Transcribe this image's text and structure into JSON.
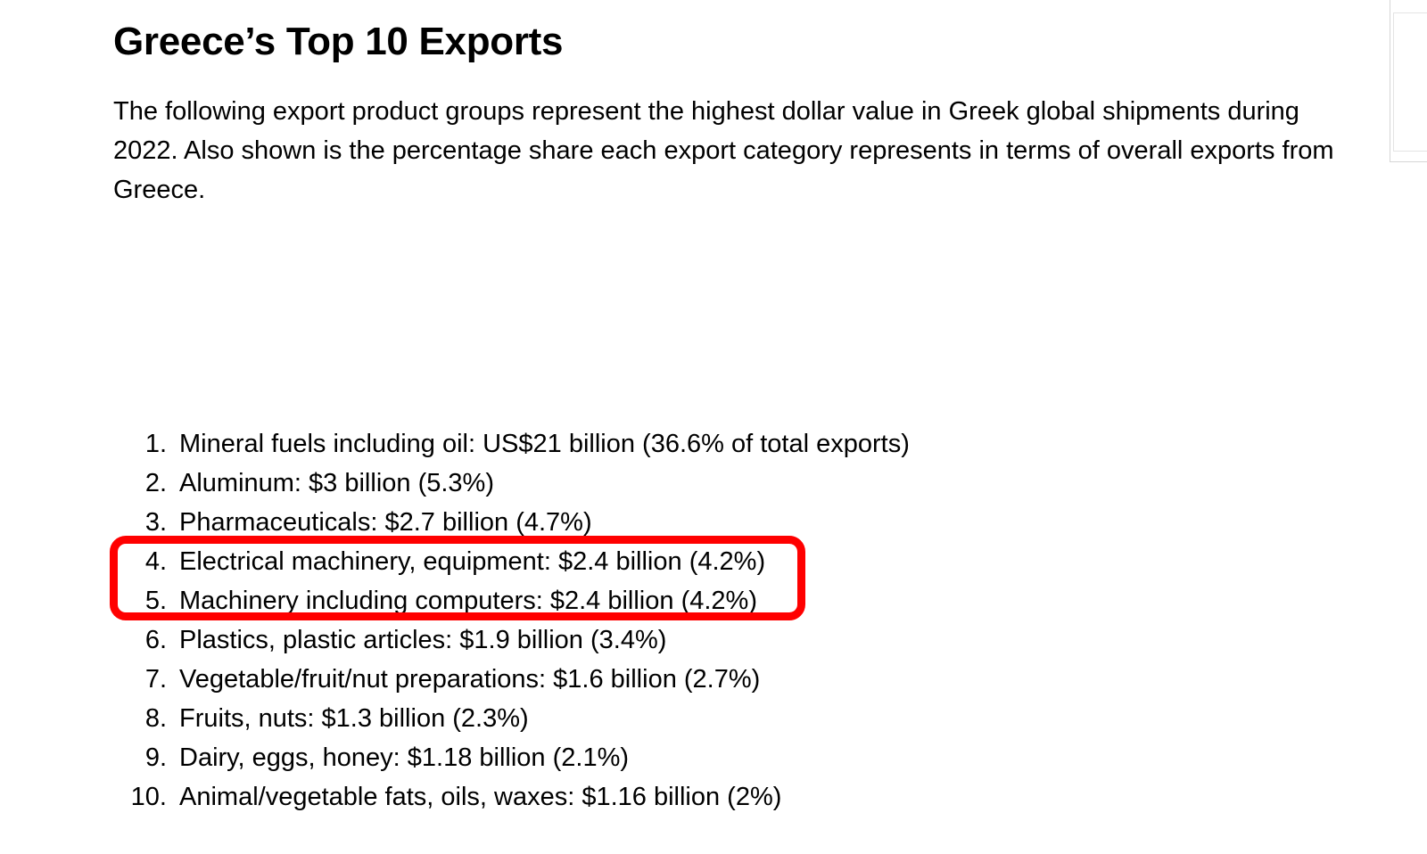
{
  "article": {
    "title": "Greece’s Top 10 Exports",
    "intro": "The following export product groups represent the highest dollar value in Greek global shipments during 2022. Also shown is the percentage share each export category represents in terms of overall exports from Greece.",
    "exports": [
      {
        "num": "1.",
        "text": "Mineral fuels including oil: US$21 billion (36.6% of total exports)"
      },
      {
        "num": "2.",
        "text": "Aluminum: $3 billion (5.3%)"
      },
      {
        "num": "3.",
        "text": "Pharmaceuticals: $2.7 billion (4.7%)"
      },
      {
        "num": "4.",
        "text": "Electrical machinery, equipment: $2.4 billion (4.2%)"
      },
      {
        "num": "5.",
        "text": "Machinery including computers: $2.4 billion (4.2%)"
      },
      {
        "num": "6.",
        "text": "Plastics, plastic articles: $1.9 billion (3.4%)"
      },
      {
        "num": "7.",
        "text": "Vegetable/fruit/nut preparations: $1.6 billion (2.7%)"
      },
      {
        "num": "8.",
        "text": "Fruits, nuts: $1.3 billion (2.3%)"
      },
      {
        "num": "9.",
        "text": "Dairy, eggs, honey: $1.18 billion (2.1%)"
      },
      {
        "num": "10.",
        "text": "Animal/vegetable fats, oils, waxes: $1.16 billion (2%)"
      }
    ]
  },
  "annotation": {
    "highlight_color": "#ff0000",
    "highlighted_items": [
      4,
      5
    ]
  }
}
